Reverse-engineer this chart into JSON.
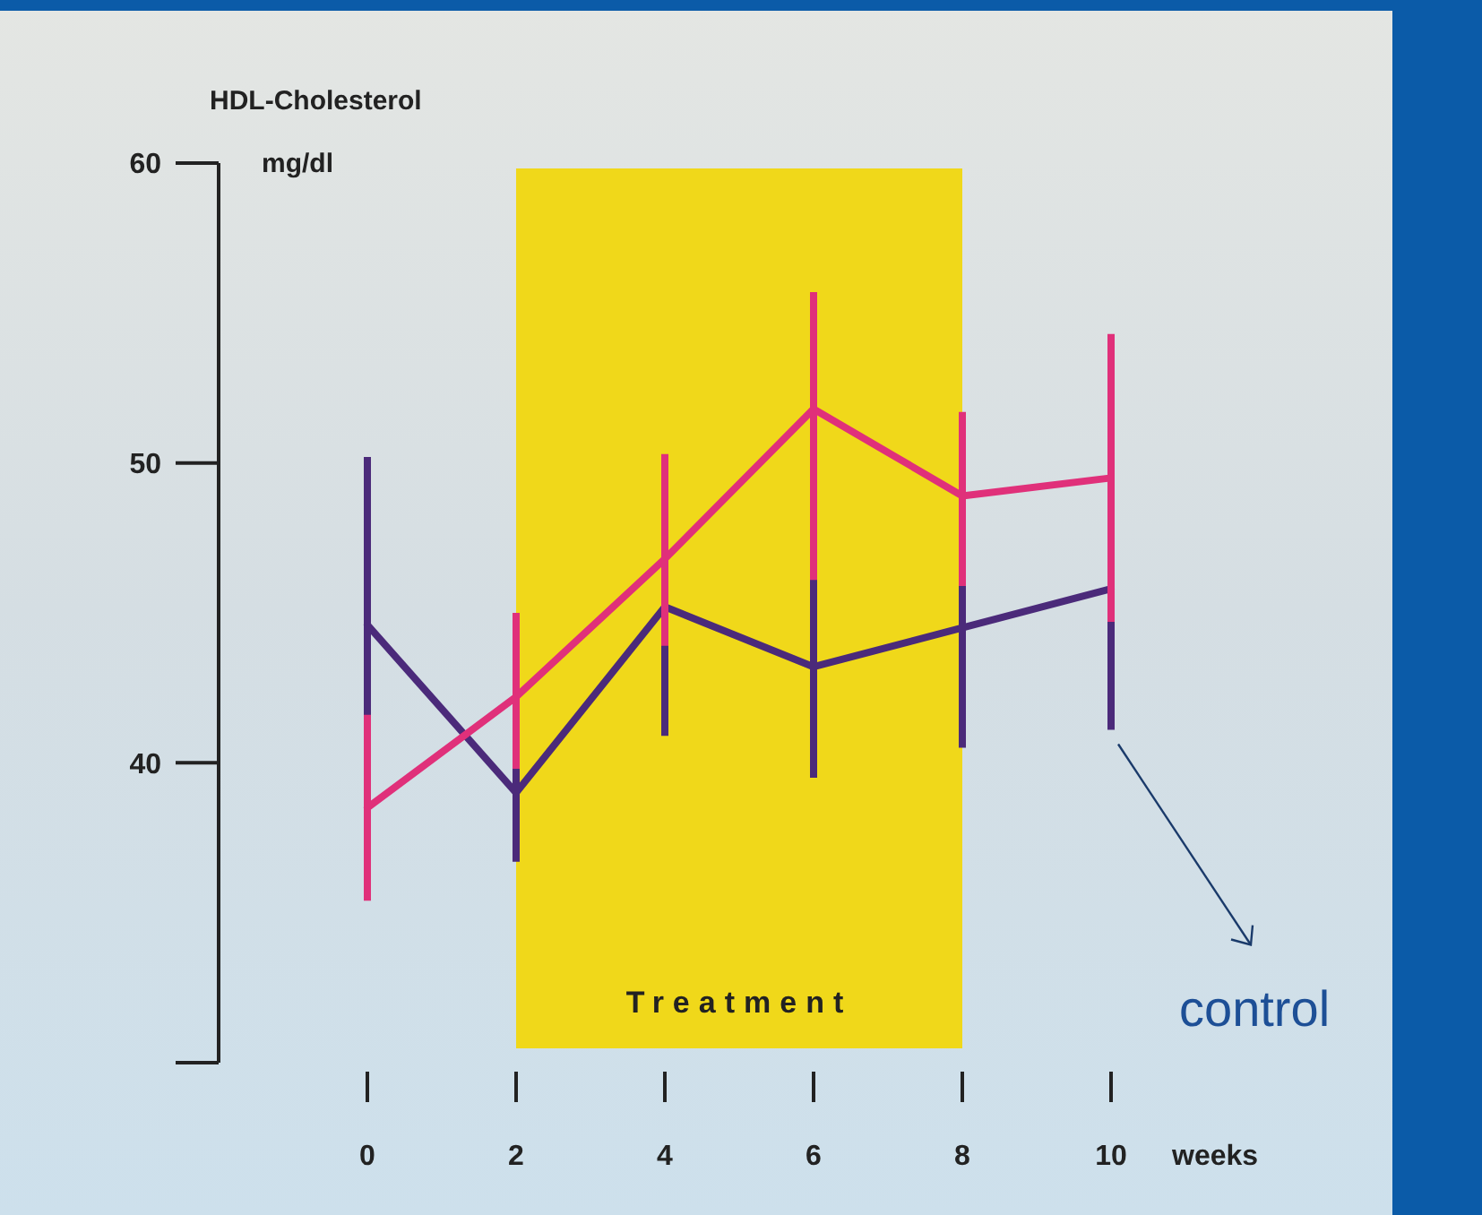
{
  "chart_data": {
    "type": "line",
    "ylabel": "HDL-Cholesterol",
    "xlabel": "weeks",
    "annotations": [
      "mg/dl"
    ],
    "x": [
      0,
      2,
      4,
      6,
      8,
      10
    ],
    "xlim": [
      0,
      10
    ],
    "xticks": [
      0,
      2,
      4,
      6,
      8,
      10
    ],
    "ylim": [
      30,
      60
    ],
    "yticks": [
      40,
      50,
      60
    ],
    "marker": "none",
    "line_style": "solid",
    "grid": false,
    "bands": [
      {
        "axis": "x",
        "from": 2,
        "to": 8,
        "label": "Treatment",
        "color": "#f0d81a"
      }
    ],
    "series": [
      {
        "name": "control",
        "color": "#4b2a7a",
        "values": [
          44.6,
          39.0,
          45.2,
          43.2,
          44.5,
          45.8
        ],
        "errors": [
          [
            38.7,
            50.2
          ],
          [
            36.7,
            41.3
          ],
          [
            40.9,
            49.6
          ],
          [
            39.5,
            46.7
          ],
          [
            40.5,
            48.3
          ],
          [
            41.1,
            50.1
          ]
        ]
      },
      {
        "color": "#e0307a",
        "values": [
          38.5,
          42.2,
          46.8,
          51.8,
          48.9,
          49.5
        ],
        "errors": [
          [
            35.4,
            41.6
          ],
          [
            39.8,
            45.0
          ],
          [
            43.9,
            50.3
          ],
          [
            46.1,
            55.7
          ],
          [
            45.9,
            51.7
          ],
          [
            44.7,
            54.3
          ]
        ]
      }
    ]
  }
}
